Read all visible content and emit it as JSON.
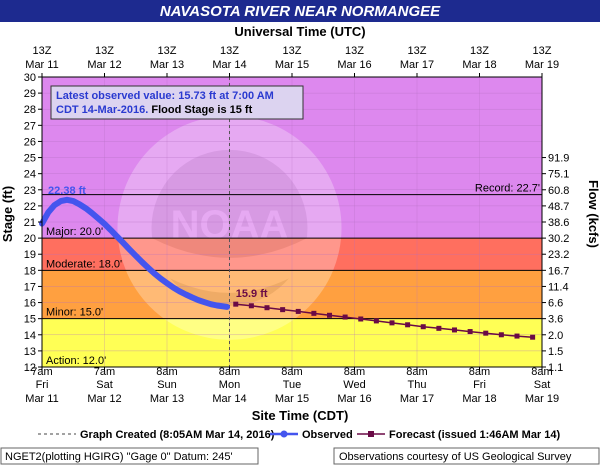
{
  "header": {
    "title": "NAVASOTA RIVER NEAR NORMANGEE",
    "top_axis_title": "Universal Time (UTC)"
  },
  "axes": {
    "left_title": "Stage (ft)",
    "right_title": "Flow (kcfs)",
    "bottom_title": "Site Time (CDT)",
    "top_ticks": [
      {
        "line1": "13Z",
        "line2": "Mar 11"
      },
      {
        "line1": "13Z",
        "line2": "Mar 12"
      },
      {
        "line1": "13Z",
        "line2": "Mar 13"
      },
      {
        "line1": "13Z",
        "line2": "Mar 14"
      },
      {
        "line1": "13Z",
        "line2": "Mar 15"
      },
      {
        "line1": "13Z",
        "line2": "Mar 16"
      },
      {
        "line1": "13Z",
        "line2": "Mar 17"
      },
      {
        "line1": "13Z",
        "line2": "Mar 18"
      },
      {
        "line1": "13Z",
        "line2": "Mar 19"
      }
    ],
    "bottom_ticks": [
      {
        "line1": "7am",
        "line2": "Fri",
        "line3": "Mar 11"
      },
      {
        "line1": "7am",
        "line2": "Sat",
        "line3": "Mar 12"
      },
      {
        "line1": "8am",
        "line2": "Sun",
        "line3": "Mar 13"
      },
      {
        "line1": "8am",
        "line2": "Mon",
        "line3": "Mar 14"
      },
      {
        "line1": "8am",
        "line2": "Tue",
        "line3": "Mar 15"
      },
      {
        "line1": "8am",
        "line2": "Wed",
        "line3": "Mar 16"
      },
      {
        "line1": "8am",
        "line2": "Thu",
        "line3": "Mar 17"
      },
      {
        "line1": "8am",
        "line2": "Fri",
        "line3": "Mar 18"
      },
      {
        "line1": "8am",
        "line2": "Sat",
        "line3": "Mar 19"
      }
    ],
    "left_ticks": [
      "12",
      "13",
      "14",
      "15",
      "16",
      "17",
      "18",
      "19",
      "20",
      "21",
      "22",
      "23",
      "24",
      "25",
      "26",
      "27",
      "28",
      "29",
      "30"
    ],
    "right_ticks": [
      {
        "stage": 12,
        "label": "1.1"
      },
      {
        "stage": 13,
        "label": "1.5"
      },
      {
        "stage": 14,
        "label": "2.0"
      },
      {
        "stage": 15,
        "label": "3.6"
      },
      {
        "stage": 16,
        "label": "6.6"
      },
      {
        "stage": 17,
        "label": "11.4"
      },
      {
        "stage": 18,
        "label": "16.7"
      },
      {
        "stage": 19,
        "label": "23.2"
      },
      {
        "stage": 20,
        "label": "30.2"
      },
      {
        "stage": 21,
        "label": "38.6"
      },
      {
        "stage": 22,
        "label": "48.7"
      },
      {
        "stage": 23,
        "label": "60.8"
      },
      {
        "stage": 24,
        "label": "75.1"
      },
      {
        "stage": 25,
        "label": "91.9"
      }
    ]
  },
  "info_box": {
    "line1": "Latest observed value: 15.73 ft at 7:00 AM",
    "line2_blue": "CDT 14-Mar-2016.",
    "line2_black": " Flood Stage is 15 ft"
  },
  "annotations": {
    "peak_label": "22.38 ft",
    "forecast_label": "15.9 ft",
    "record_label": "Record: 22.7'",
    "major_label": "Major: 20.0'",
    "moderate_label": "Moderate: 18.0'",
    "minor_label": "Minor: 15.0'",
    "action_label": "Action: 12.0'"
  },
  "legend": {
    "created": "Graph Created (8:05AM Mar 14, 2016)",
    "observed": "Observed",
    "forecast": "Forecast (issued 1:46AM Mar 14)"
  },
  "footer": {
    "left": "NGET2(plotting HGIRG) \"Gage 0\" Datum: 245'",
    "right": "Observations courtesy of US Geological Survey"
  },
  "colors": {
    "record_band": "#dd88ee",
    "major_band": "#ee88dd",
    "moderate_band": "#ff6f5f",
    "minor_band": "#ffa040",
    "action_band": "#ffff55",
    "observed": "#4455ee",
    "forecast": "#6a0a46",
    "title_bar": "#1d2a8f"
  },
  "chart_data": {
    "type": "line",
    "title": "NAVASOTA RIVER NEAR NORMANGEE",
    "xlabel": "Site Time (CDT)",
    "ylabel": "Stage (ft)",
    "y2label": "Flow (kcfs)",
    "ylim": [
      12,
      30
    ],
    "x_unit": "days since 7am Fri Mar 11 (CDT)",
    "xlim": [
      0,
      8
    ],
    "thresholds": {
      "action": 12.0,
      "minor": 15.0,
      "moderate": 18.0,
      "major": 20.0,
      "record": 22.7
    },
    "graph_created_x": 3.0,
    "series": [
      {
        "name": "Observed",
        "points": [
          [
            0.0,
            20.9
          ],
          [
            0.1,
            21.6
          ],
          [
            0.2,
            22.05
          ],
          [
            0.3,
            22.3
          ],
          [
            0.4,
            22.38
          ],
          [
            0.5,
            22.3
          ],
          [
            0.6,
            22.1
          ],
          [
            0.7,
            21.85
          ],
          [
            0.8,
            21.55
          ],
          [
            0.9,
            21.22
          ],
          [
            1.0,
            20.88
          ],
          [
            1.1,
            20.5
          ],
          [
            1.2,
            20.1
          ],
          [
            1.3,
            19.7
          ],
          [
            1.4,
            19.3
          ],
          [
            1.5,
            18.9
          ],
          [
            1.6,
            18.52
          ],
          [
            1.7,
            18.15
          ],
          [
            1.8,
            17.8
          ],
          [
            1.9,
            17.48
          ],
          [
            2.0,
            17.2
          ],
          [
            2.1,
            16.93
          ],
          [
            2.2,
            16.7
          ],
          [
            2.3,
            16.5
          ],
          [
            2.4,
            16.32
          ],
          [
            2.5,
            16.15
          ],
          [
            2.6,
            16.02
          ],
          [
            2.7,
            15.9
          ],
          [
            2.8,
            15.82
          ],
          [
            2.9,
            15.76
          ],
          [
            2.96,
            15.73
          ]
        ]
      },
      {
        "name": "Forecast (issued 1:46AM Mar 14)",
        "points": [
          [
            3.1,
            15.9
          ],
          [
            3.35,
            15.8
          ],
          [
            3.6,
            15.68
          ],
          [
            3.85,
            15.56
          ],
          [
            4.1,
            15.45
          ],
          [
            4.35,
            15.33
          ],
          [
            4.6,
            15.21
          ],
          [
            4.85,
            15.1
          ],
          [
            5.1,
            14.98
          ],
          [
            5.35,
            14.86
          ],
          [
            5.6,
            14.74
          ],
          [
            5.85,
            14.62
          ],
          [
            6.1,
            14.5
          ],
          [
            6.35,
            14.4
          ],
          [
            6.6,
            14.3
          ],
          [
            6.85,
            14.2
          ],
          [
            7.1,
            14.1
          ],
          [
            7.35,
            14.0
          ],
          [
            7.6,
            13.92
          ],
          [
            7.85,
            13.85
          ]
        ]
      }
    ]
  }
}
